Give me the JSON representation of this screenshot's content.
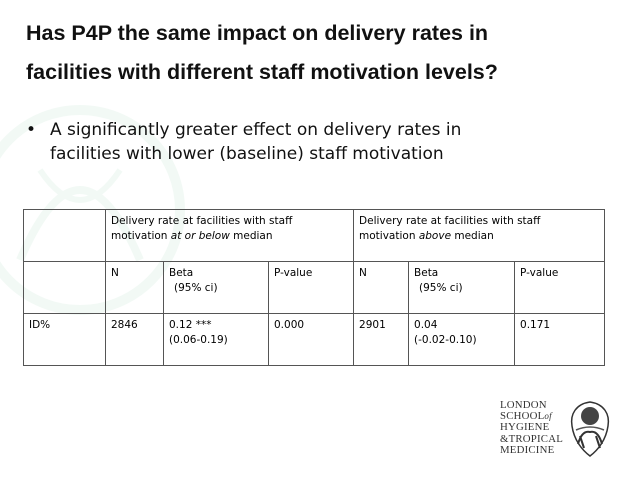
{
  "slide": {
    "title_line1": "Has P4P the same impact on delivery rates in",
    "title_line2": "facilities with different staff motivation levels?",
    "bullet_line1": "A significantly greater effect on delivery rates in",
    "bullet_line2": "facilities with lower (baseline) staff motivation"
  },
  "table": {
    "group1": {
      "prefix": "Delivery rate at facilities with staff motivation ",
      "emph": "at or below",
      "suffix": " median"
    },
    "group2": {
      "prefix": "Delivery rate at facilities with staff motivation ",
      "emph": "above",
      "suffix": " median"
    },
    "col_n": "N",
    "col_beta_1": "Beta",
    "col_beta_2": "(95% ci)",
    "col_p": "P-value",
    "row_label": "ID%",
    "g1_n": "2846",
    "g1_beta": "0.12 ***",
    "g1_ci": "(0.06-0.19)",
    "g1_p": "0.000",
    "g2_n": "2901",
    "g2_beta": "0.04",
    "g2_ci": "(-0.02-0.10)",
    "g2_p": "0.171"
  },
  "logo": {
    "line1": "LONDON",
    "line2a": "SCHOOL",
    "line2b": "of",
    "line3": "HYGIENE",
    "line4": "&TROPICAL",
    "line5": "MEDICINE"
  }
}
